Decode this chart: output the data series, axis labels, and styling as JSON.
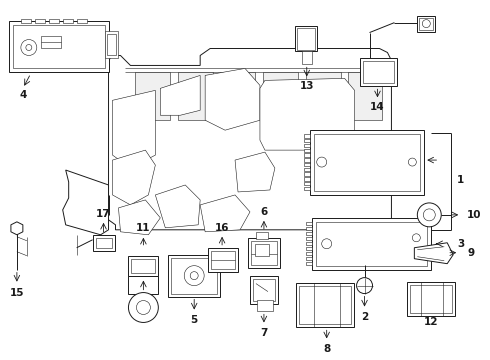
{
  "background": "#ffffff",
  "line_color": "#1a1a1a",
  "text_color": "#000000",
  "lw": 0.7,
  "lt": 0.4,
  "fs": 7.5
}
